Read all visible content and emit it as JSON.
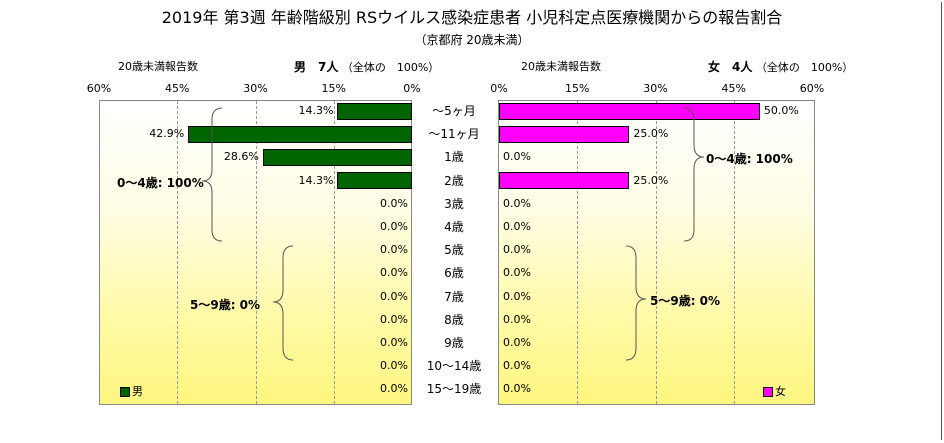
{
  "title": "2019年 第3週 年齢階級別 RSウイルス感染症患者 小児科定点医療機関からの報告割合",
  "subtitle": "（京都府 20歳未満）",
  "male_header": {
    "count_label": "20歳未満報告数",
    "sex_count": "男　7人",
    "scale_note": "（全体の　100%）"
  },
  "female_header": {
    "count_label": "20歳未満報告数",
    "sex_count": "女　4人",
    "scale_note": "（全体の　100%）"
  },
  "brackets": {
    "left_0_4": "0～4歳: 100%",
    "left_5_9": "5～9歳: 0%",
    "right_0_4": "0～4歳: 100%",
    "right_5_9": "5～9歳: 0%"
  },
  "legend": {
    "male": "男",
    "female": "女"
  },
  "colors": {
    "male": "#006400",
    "female": "#ff00ff",
    "male_swatch": "#006400",
    "female_swatch": "#ff00ff"
  },
  "chart_data": [
    {
      "type": "bar",
      "orientation": "horizontal",
      "direction": "right-to-left",
      "categories": [
        "～5ヶ月",
        "～11ヶ月",
        "1歳",
        "2歳",
        "3歳",
        "4歳",
        "5歳",
        "6歳",
        "7歳",
        "8歳",
        "9歳",
        "10～14歳",
        "15～19歳"
      ],
      "series": [
        {
          "name": "男",
          "values": [
            14.3,
            42.9,
            28.6,
            14.3,
            0.0,
            0.0,
            0.0,
            0.0,
            0.0,
            0.0,
            0.0,
            0.0,
            0.0
          ]
        }
      ],
      "value_labels": [
        "14.3%",
        "42.9%",
        "28.6%",
        "14.3%",
        "0.0%",
        "0.0%",
        "0.0%",
        "0.0%",
        "0.0%",
        "0.0%",
        "0.0%",
        "0.0%",
        "0.0%"
      ],
      "xlim": [
        0,
        60
      ],
      "xticks": [
        "60%",
        "45%",
        "30%",
        "15%",
        "0%"
      ],
      "xtick_values": [
        60,
        45,
        30,
        15,
        0
      ],
      "grid": true,
      "legend": "bottom-left"
    },
    {
      "type": "bar",
      "orientation": "horizontal",
      "direction": "left-to-right",
      "categories": [
        "～5ヶ月",
        "～11ヶ月",
        "1歳",
        "2歳",
        "3歳",
        "4歳",
        "5歳",
        "6歳",
        "7歳",
        "8歳",
        "9歳",
        "10～14歳",
        "15～19歳"
      ],
      "series": [
        {
          "name": "女",
          "values": [
            50.0,
            25.0,
            0.0,
            25.0,
            0.0,
            0.0,
            0.0,
            0.0,
            0.0,
            0.0,
            0.0,
            0.0,
            0.0
          ]
        }
      ],
      "value_labels": [
        "50.0%",
        "25.0%",
        "0.0%",
        "25.0%",
        "0.0%",
        "0.0%",
        "0.0%",
        "0.0%",
        "0.0%",
        "0.0%",
        "0.0%",
        "0.0%",
        "0.0%"
      ],
      "xlim": [
        0,
        60
      ],
      "xticks": [
        "0%",
        "15%",
        "30%",
        "45%",
        "60%"
      ],
      "xtick_values": [
        0,
        15,
        30,
        45,
        60
      ],
      "grid": true,
      "legend": "bottom-right"
    }
  ]
}
